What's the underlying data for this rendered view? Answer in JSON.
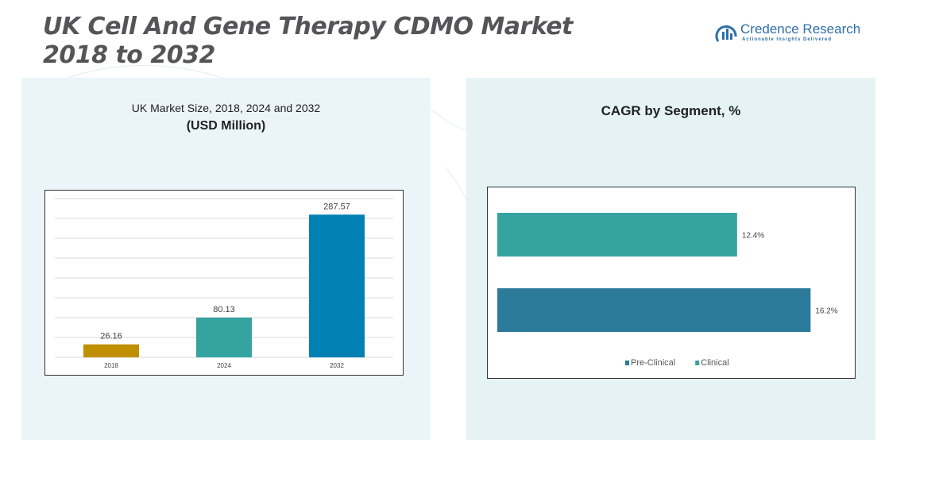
{
  "page": {
    "title_line1": "UK Cell And Gene Therapy CDMO Market",
    "title_line2": "2018 to 2032"
  },
  "logo": {
    "name": "Credence Research",
    "tagline": "Actionable Insights Delivered",
    "icon": "credence-research-logo-icon",
    "color": "#2d6fa8"
  },
  "left_panel": {
    "subtitle": "UK Market Size, 2018, 2024 and 2032",
    "unit": "(USD Million)"
  },
  "right_panel": {
    "title": "CAGR by Segment, %"
  },
  "chart_data": [
    {
      "type": "bar",
      "orientation": "vertical",
      "categories": [
        "2018",
        "2024",
        "2032"
      ],
      "values": [
        26.16,
        80.13,
        287.57
      ],
      "value_labels": [
        "26.16",
        "80.13",
        "287.57"
      ],
      "colors": [
        "#c08f00",
        "#35a3a0",
        "#0180b4"
      ],
      "ylim": [
        0,
        320
      ],
      "grid": true
    },
    {
      "type": "bar",
      "orientation": "horizontal",
      "categories": [
        "Clinical",
        "Pre-Clinical"
      ],
      "values": [
        12.4,
        16.2
      ],
      "value_labels": [
        "12.4%",
        "16.2%"
      ],
      "colors": [
        "#35a3a0",
        "#2d7b9a"
      ],
      "xlim": [
        0,
        17.5
      ],
      "legend": [
        {
          "name": "Pre-Clinical",
          "color": "#2d7b9a"
        },
        {
          "name": "Clinical",
          "color": "#35a3a0"
        }
      ],
      "legend_position": "bottom",
      "grid": false
    }
  ]
}
